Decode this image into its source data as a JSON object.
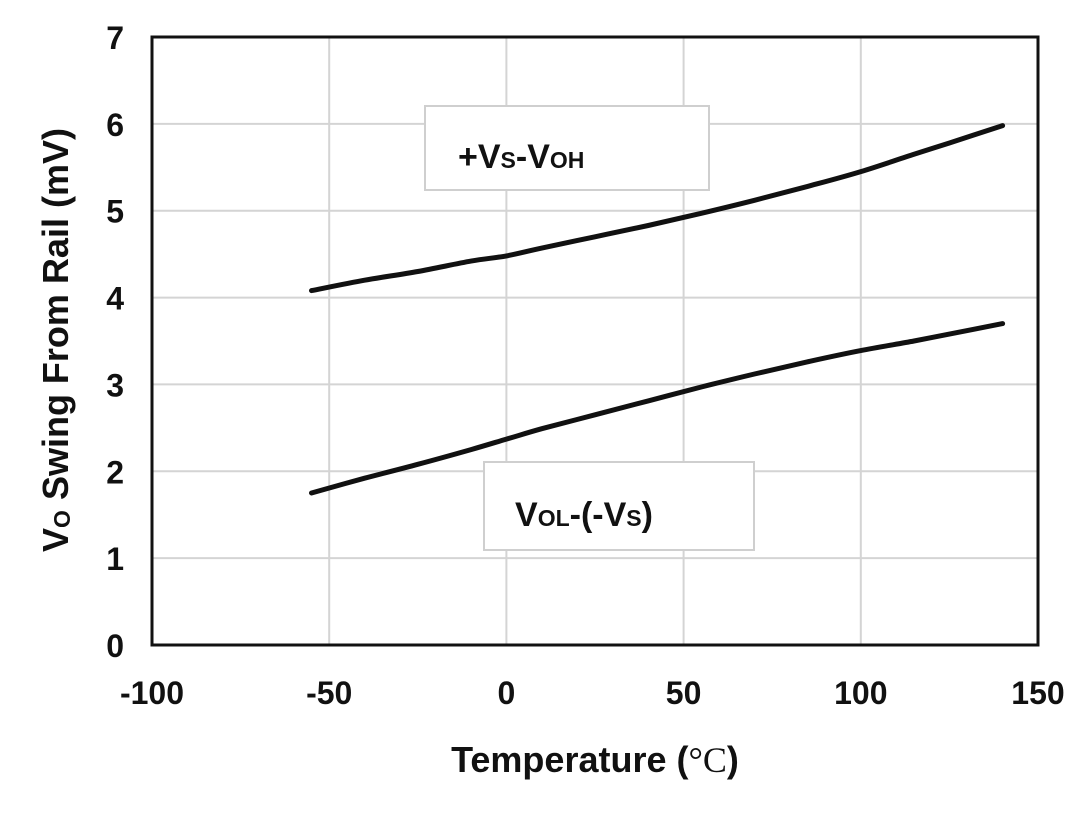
{
  "chart_data": {
    "type": "line",
    "xlabel": {
      "main": "Temperature (",
      "unit": "°C",
      "close": ")"
    },
    "ylabel": {
      "v": "V",
      "sub": "O",
      "rest": " Swing From Rail  (mV)"
    },
    "xlim": [
      -100,
      150
    ],
    "ylim": [
      0,
      7
    ],
    "xticks": [
      -100,
      -50,
      0,
      50,
      100,
      150
    ],
    "yticks": [
      0,
      1,
      2,
      3,
      4,
      5,
      6,
      7
    ],
    "grid": true,
    "series": [
      {
        "label": {
          "pre": "+V",
          "sub1": "S",
          "mid": "-V",
          "sub2": "OH",
          "post": ""
        },
        "color": "#111111",
        "x": [
          -55,
          -40,
          -25,
          -10,
          0,
          10,
          25,
          40,
          55,
          70,
          85,
          100,
          115,
          125,
          140
        ],
        "y": [
          4.08,
          4.2,
          4.3,
          4.42,
          4.48,
          4.57,
          4.7,
          4.83,
          4.97,
          5.12,
          5.28,
          5.45,
          5.65,
          5.78,
          5.98
        ]
      },
      {
        "label": {
          "pre": "V",
          "sub1": "OL",
          "mid": "-(-V",
          "sub2": "S",
          "post": ")"
        },
        "color": "#111111",
        "x": [
          -55,
          -40,
          -25,
          -10,
          0,
          10,
          25,
          40,
          55,
          70,
          85,
          100,
          115,
          125,
          140
        ],
        "y": [
          1.75,
          1.92,
          2.08,
          2.25,
          2.37,
          2.49,
          2.65,
          2.81,
          2.97,
          3.12,
          3.26,
          3.39,
          3.5,
          3.58,
          3.7
        ]
      }
    ]
  }
}
